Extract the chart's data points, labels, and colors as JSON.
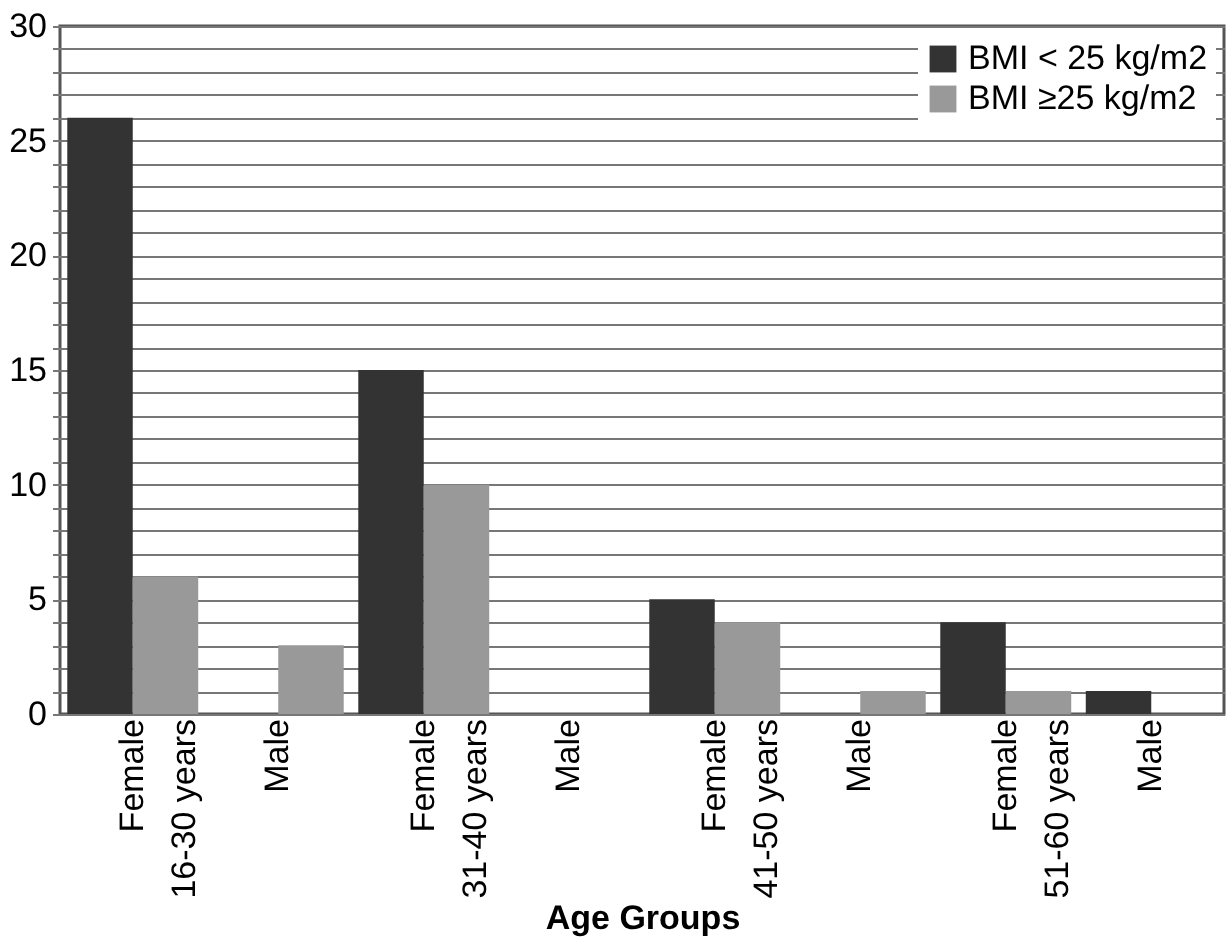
{
  "chart_data": {
    "type": "bar",
    "xlabel": "Age Groups",
    "categories": [
      "Female\n16-30 years",
      "Male",
      "Female\n31-40 years",
      "Male",
      "Female\n41-50 years",
      "Male",
      "Female\n51-60 years",
      "Male"
    ],
    "series": [
      {
        "name": "BMI < 25 kg/m2",
        "color": "#333333",
        "values": [
          26,
          0,
          15,
          0,
          5,
          0,
          4,
          1
        ]
      },
      {
        "name": "BMI ≥25 kg/m2",
        "color": "#999999",
        "values": [
          6,
          3,
          10,
          0,
          4,
          1,
          1,
          0
        ]
      }
    ],
    "ylim": [
      0,
      30
    ],
    "yticks": [
      0,
      {
        "value": 1,
        "label": null
      },
      {
        "value": 2,
        "label": null
      },
      {
        "value": 3,
        "label": null
      },
      {
        "value": 4,
        "label": null
      },
      5,
      {
        "value": 6,
        "label": null
      },
      {
        "value": 7,
        "label": null
      },
      {
        "value": 8,
        "label": null
      },
      {
        "value": 9,
        "label": null
      },
      10,
      {
        "value": 11,
        "label": null
      },
      {
        "value": 12,
        "label": null
      },
      {
        "value": 13,
        "label": null
      },
      {
        "value": 14,
        "label": null
      },
      15,
      {
        "value": 16,
        "label": null
      },
      {
        "value": 17,
        "label": null
      },
      {
        "value": 18,
        "label": null
      },
      {
        "value": 19,
        "label": null
      },
      20,
      {
        "value": 21,
        "label": null
      },
      {
        "value": 22,
        "label": null
      },
      {
        "value": 23,
        "label": null
      },
      {
        "value": 24,
        "label": null
      },
      25,
      {
        "value": 26,
        "label": null
      },
      {
        "value": 27,
        "label": null
      },
      {
        "value": 28,
        "label": null
      },
      {
        "value": 29,
        "label": null
      },
      30
    ],
    "grid": "y",
    "legend": "top right"
  }
}
